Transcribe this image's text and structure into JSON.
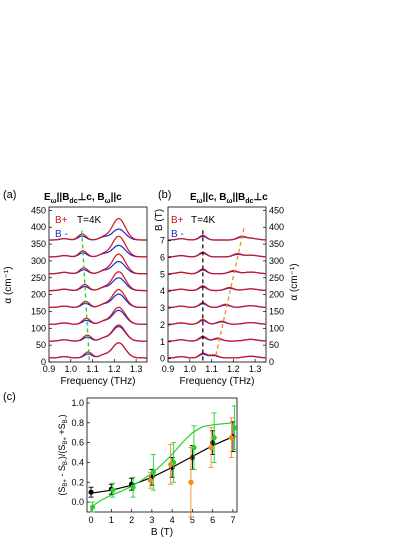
{
  "panel_labels": {
    "a": "(a)",
    "b": "(b)",
    "c": "(c)"
  },
  "colors": {
    "b_plus": "#d0141e",
    "b_minus": "#1a2bd6",
    "green": "#1fd32a",
    "orange": "#f28a1c",
    "black": "#000000"
  },
  "legend": {
    "b_plus": "B+",
    "b_minus": "B -",
    "temperature": "T=4K"
  },
  "panel_a": {
    "title_rich": "E||B⊥c, B||c",
    "ylabel": "α (cm⁻¹)",
    "xlabel": "Frequency (THz)"
  },
  "panel_b": {
    "title_rich": "E||c, B||B⊥c",
    "ylabel_left": "B (T)",
    "ylabel_right": "α (cm⁻¹)",
    "xlabel": "Frequency (THz)"
  },
  "panel_c": {
    "xlabel": "B (T)",
    "ylabel": "(S_B+ - S_B-)/(S_B+ + S_B-)"
  },
  "chart_data": [
    {
      "type": "line",
      "panel": "a",
      "xlabel": "Frequency (THz)",
      "ylabel": "α (cm⁻¹)",
      "xlim": [
        0.9,
        1.35
      ],
      "ylim": [
        0,
        460
      ],
      "xticks": [
        0.9,
        1.0,
        1.1,
        1.2,
        1.3
      ],
      "xtick_labels": [
        "0.9",
        "1.0",
        "1.1",
        "1.2",
        "1.3"
      ],
      "yticks": [
        0,
        50,
        100,
        150,
        200,
        250,
        300,
        350,
        400,
        450
      ],
      "legend": [
        "B+",
        "B -"
      ],
      "annotation": "T=4K",
      "field_T": [
        0,
        1,
        2,
        3,
        4,
        5,
        6,
        7
      ],
      "offsets": [
        0,
        50,
        100,
        150,
        200,
        250,
        300,
        350
      ],
      "x": [
        0.9,
        0.95,
        1.0,
        1.05,
        1.08,
        1.1,
        1.15,
        1.2,
        1.22,
        1.25,
        1.3,
        1.35
      ],
      "series": [
        {
          "name": "B+",
          "field_T": 0,
          "values": [
            12,
            14,
            20,
            35,
            45,
            35,
            30,
            60,
            75,
            60,
            22,
            10
          ]
        },
        {
          "name": "B -",
          "field_T": 0,
          "values": [
            12,
            14,
            20,
            35,
            45,
            35,
            30,
            60,
            75,
            60,
            22,
            10
          ]
        },
        {
          "name": "B+",
          "field_T": 7,
          "values": [
            355,
            356,
            360,
            373,
            372,
            366,
            372,
            440,
            460,
            440,
            375,
            360
          ]
        },
        {
          "name": "B -",
          "field_T": 7,
          "values": [
            355,
            356,
            358,
            362,
            364,
            362,
            362,
            386,
            395,
            384,
            365,
            356
          ]
        }
      ]
    },
    {
      "type": "line",
      "panel": "b",
      "xlabel": "Frequency (THz)",
      "ylabel": "α (cm⁻¹)",
      "y2label": "B (T)",
      "xlim": [
        0.9,
        1.35
      ],
      "ylim": [
        0,
        460
      ],
      "xticks": [
        0.9,
        1.0,
        1.1,
        1.2,
        1.3
      ],
      "xtick_labels": [
        "0.9",
        "1.0",
        "1.1",
        "1.2",
        "1.3"
      ],
      "yticks": [
        0,
        50,
        100,
        150,
        200,
        250,
        300,
        350,
        400,
        450
      ],
      "b_ticks": [
        0,
        1,
        2,
        3,
        4,
        5,
        6,
        7
      ],
      "legend": [
        "B+",
        "B -"
      ],
      "annotation": "T=4K",
      "field_T": [
        0,
        1,
        2,
        3,
        4,
        5,
        6,
        7
      ],
      "offsets": [
        0,
        50,
        100,
        150,
        200,
        250,
        300,
        350
      ]
    },
    {
      "type": "scatter",
      "panel": "c",
      "xlabel": "B (T)",
      "ylabel": "(S_B+ - S_B-)/(S_B+ + S_B-)",
      "xlim": [
        -0.2,
        7.2
      ],
      "ylim": [
        -0.1,
        1.05
      ],
      "xticks": [
        0,
        1,
        2,
        3,
        4,
        5,
        6,
        7
      ],
      "yticks": [
        0.0,
        0.2,
        0.4,
        0.6,
        0.8,
        1.0
      ],
      "ytick_labels": [
        "0.0",
        "0.2",
        "0.4",
        "0.6",
        "0.8",
        "1.0"
      ],
      "series": [
        {
          "color": "black",
          "x": [
            0,
            1,
            2,
            3,
            4,
            5,
            6,
            7
          ],
          "y": [
            0.1,
            0.13,
            0.18,
            0.25,
            0.35,
            0.45,
            0.6,
            0.66
          ],
          "err": [
            0.05,
            0.05,
            0.06,
            0.08,
            0.1,
            0.12,
            0.12,
            0.15
          ]
        },
        {
          "color": "green",
          "x": [
            0,
            1,
            2,
            3,
            4,
            5,
            6,
            7
          ],
          "y": [
            -0.05,
            0.12,
            0.15,
            0.3,
            0.4,
            0.55,
            0.65,
            0.75
          ],
          "err": [
            0.05,
            0.07,
            0.1,
            0.18,
            0.2,
            0.22,
            0.25,
            0.22
          ]
        },
        {
          "color": "orange",
          "x": [
            3,
            4,
            5,
            6,
            7
          ],
          "y": [
            0.22,
            0.38,
            0.2,
            0.55,
            0.65
          ],
          "err": [
            0.08,
            0.2,
            0.35,
            0.2,
            0.2
          ]
        }
      ],
      "fits": [
        {
          "color": "black",
          "x": [
            0,
            1,
            2,
            3,
            4,
            5,
            6,
            7
          ],
          "y": [
            0.09,
            0.12,
            0.17,
            0.25,
            0.35,
            0.46,
            0.57,
            0.66
          ]
        },
        {
          "color": "green",
          "x": [
            0,
            0.5,
            1,
            1.5,
            2,
            2.5,
            3,
            3.5,
            4,
            4.5,
            5,
            5.5,
            6,
            7
          ],
          "y": [
            -0.05,
            0.02,
            0.07,
            0.11,
            0.16,
            0.22,
            0.29,
            0.38,
            0.48,
            0.6,
            0.7,
            0.76,
            0.78,
            0.8
          ]
        }
      ]
    }
  ]
}
